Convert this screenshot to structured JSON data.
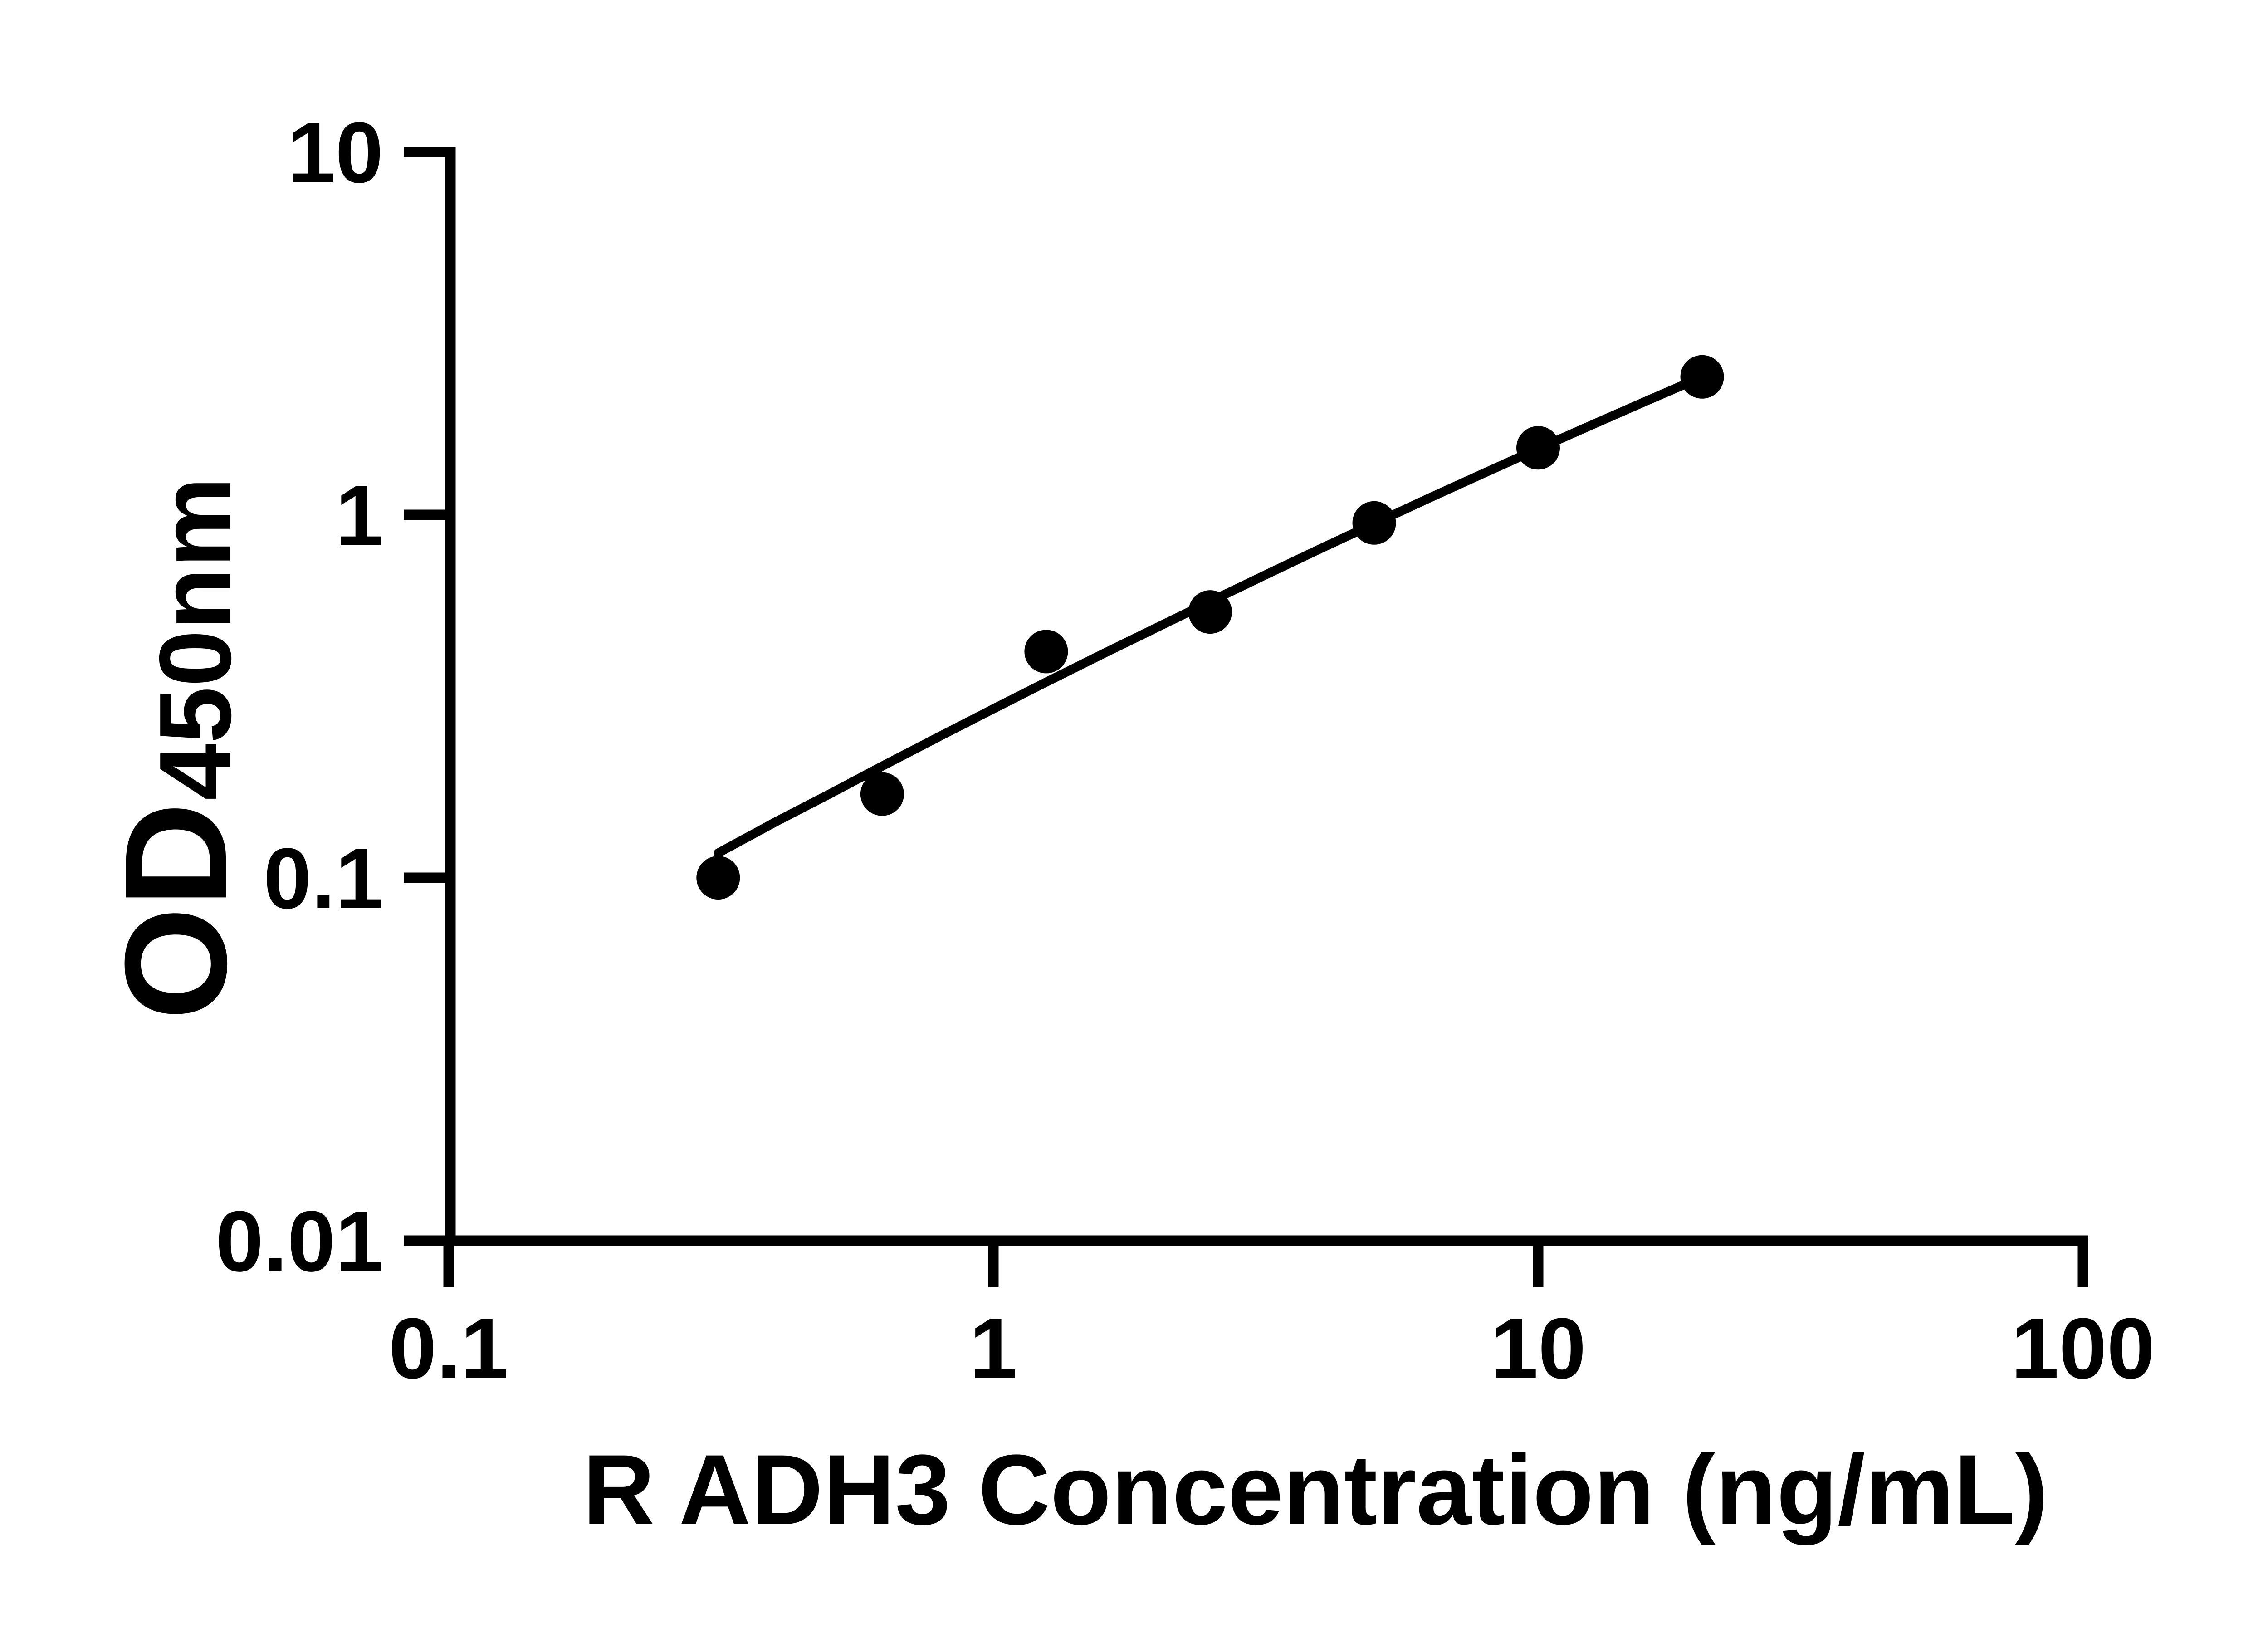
{
  "chart_data": {
    "type": "scatter",
    "title": "",
    "xlabel": "R ADH3 Concentration (ng/mL)",
    "ylabel": "OD450nm",
    "ylabel_main": "OD",
    "ylabel_sub": "450nm",
    "x_scale": "log",
    "y_scale": "log",
    "xlim": [
      0.1,
      100
    ],
    "ylim": [
      0.01,
      10
    ],
    "x_tick_values": [
      0.1,
      1,
      10,
      100
    ],
    "x_tick_labels": [
      "0.1",
      "1",
      "10",
      "100"
    ],
    "y_tick_values": [
      10,
      1,
      0.1,
      0.01
    ],
    "y_tick_labels": [
      "10",
      "1",
      "0.1",
      "0.01"
    ],
    "grid": "off",
    "legend": "none",
    "series": [
      {
        "name": "standard-curve-points",
        "points": [
          {
            "x": 0.3125,
            "y": 0.1
          },
          {
            "x": 0.625,
            "y": 0.17
          },
          {
            "x": 1.25,
            "y": 0.42
          },
          {
            "x": 2.5,
            "y": 0.54
          },
          {
            "x": 5,
            "y": 0.95
          },
          {
            "x": 10,
            "y": 1.53
          },
          {
            "x": 20,
            "y": 2.4
          }
        ]
      }
    ],
    "fit_curve": [
      [
        0.3125,
        0.117
      ],
      [
        0.4,
        0.143
      ],
      [
        0.5,
        0.17
      ],
      [
        0.625,
        0.203
      ],
      [
        0.8,
        0.246
      ],
      [
        1.0,
        0.292
      ],
      [
        1.25,
        0.346
      ],
      [
        1.6,
        0.416
      ],
      [
        2.0,
        0.49
      ],
      [
        2.5,
        0.577
      ],
      [
        3.15,
        0.682
      ],
      [
        4.0,
        0.809
      ],
      [
        5.0,
        0.946
      ],
      [
        6.3,
        1.111
      ],
      [
        8.0,
        1.308
      ],
      [
        10,
        1.522
      ],
      [
        12.5,
        1.765
      ],
      [
        16,
        2.077
      ],
      [
        20,
        2.401
      ]
    ],
    "marker": {
      "shape": "circle",
      "color": "#000000",
      "radius_px": 48
    },
    "curve_color": "#000000",
    "axis_color": "#000000",
    "background_color": "#ffffff"
  }
}
